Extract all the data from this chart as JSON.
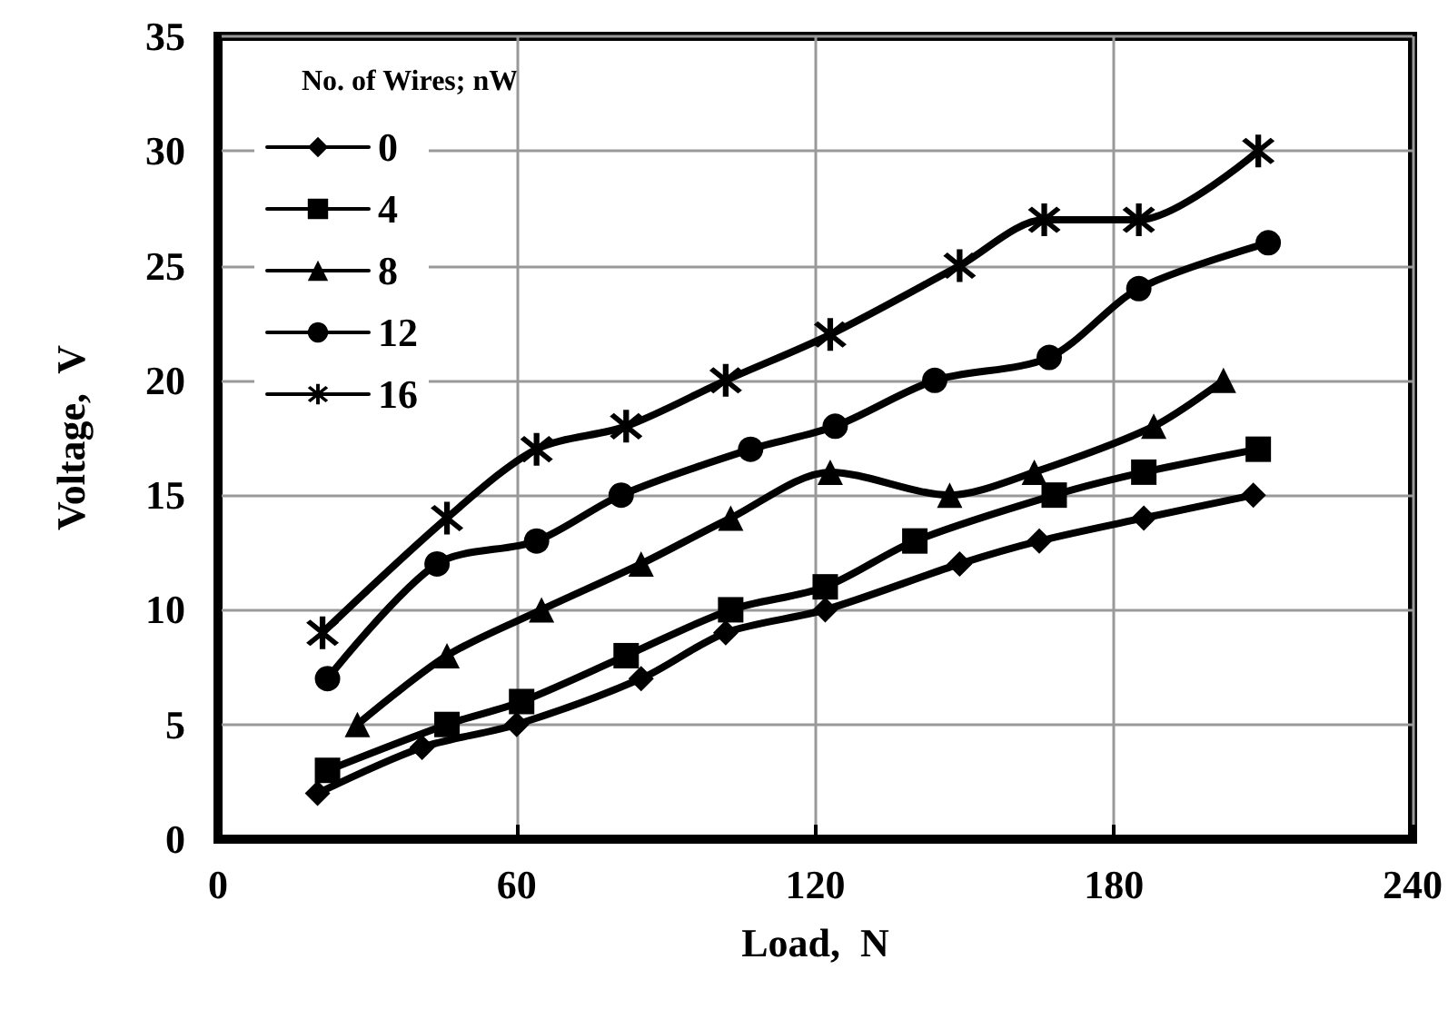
{
  "chart_data": {
    "type": "line",
    "xlabel": "Load,  N",
    "ylabel": "Voltage,  V",
    "legend_title": "No. of Wires; nW",
    "xlim": [
      0,
      240
    ],
    "xticks": [
      0,
      60,
      120,
      180,
      240
    ],
    "ylim": [
      0,
      35
    ],
    "yticks": [
      0,
      5,
      10,
      15,
      20,
      25,
      30,
      35
    ],
    "grid": true,
    "legend": "top left",
    "line_style": "solid",
    "series": [
      {
        "name": "0",
        "color": "#000000",
        "marker": "diamond",
        "x": [
          20,
          41,
          60,
          85,
          102,
          122,
          149,
          165,
          186,
          208
        ],
        "values": [
          2,
          4,
          5,
          7,
          9,
          10,
          12,
          13,
          14,
          15
        ]
      },
      {
        "name": "4",
        "color": "#000000",
        "marker": "square",
        "x": [
          22,
          46,
          61,
          82,
          103,
          122,
          140,
          168,
          186,
          209
        ],
        "values": [
          3,
          5,
          6,
          8,
          10,
          11,
          13,
          15,
          16,
          17
        ]
      },
      {
        "name": "8",
        "color": "#000000",
        "marker": "triangle",
        "x": [
          28,
          46,
          65,
          85,
          103,
          123,
          147,
          164,
          188,
          202
        ],
        "values": [
          5,
          8,
          10,
          12,
          14,
          16,
          15,
          16,
          18,
          20
        ]
      },
      {
        "name": "12",
        "color": "#000000",
        "marker": "circle",
        "x": [
          22,
          44,
          64,
          81,
          107,
          124,
          144,
          167,
          185,
          211
        ],
        "values": [
          7,
          12,
          13,
          15,
          17,
          18,
          20,
          21,
          24,
          26
        ]
      },
      {
        "name": "16",
        "color": "#000000",
        "marker": "cross",
        "x": [
          21,
          46,
          64,
          82,
          102,
          123,
          149,
          166,
          185,
          209
        ],
        "values": [
          9,
          14,
          17,
          18,
          20,
          22,
          25,
          27,
          27,
          30
        ]
      }
    ]
  }
}
